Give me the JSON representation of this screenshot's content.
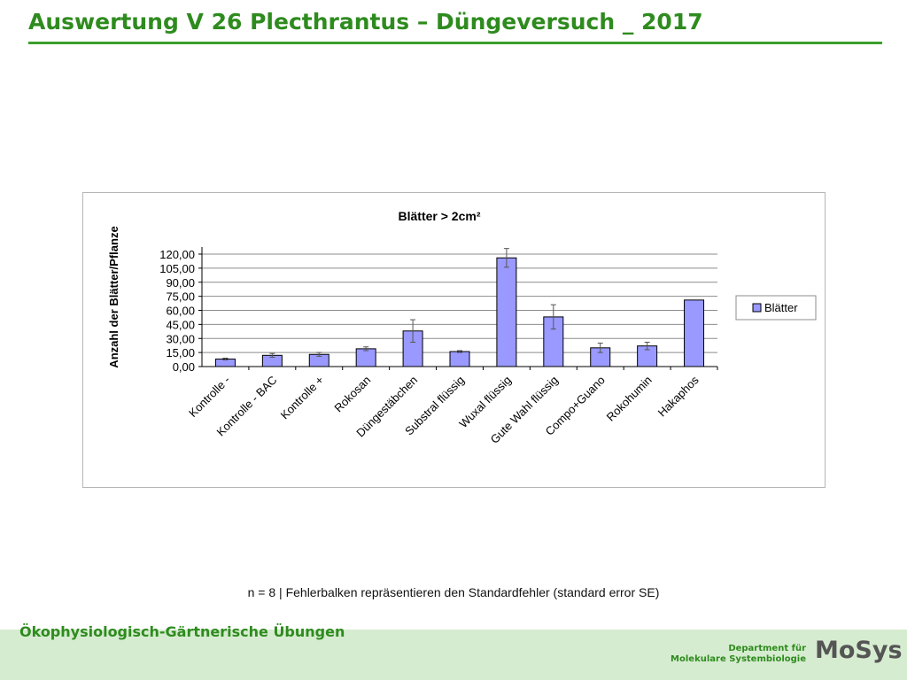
{
  "slide": {
    "title": "Auswertung V 26 Plecthrantus – Düngeversuch _ 2017",
    "footnote": "n = 8 | Fehlerbalken repräsentieren den Standardfehler (standard error SE)",
    "footer_left": "Ökophysiologisch-Gärtnerische Übungen",
    "dept_line1": "Department für",
    "dept_line2": "Molekulare Systembiologie",
    "logo_text": "MoSys"
  },
  "colors": {
    "title": "#2e8b1e",
    "bar_fill": "#9999ff",
    "bar_stroke": "#000000",
    "footer_band": "#d6ecd0"
  },
  "chart_data": {
    "type": "bar",
    "title": "Blätter > 2cm²",
    "ylabel": "Anzahl der Blätter/Pflanze",
    "xlabel": "",
    "ylim": [
      0,
      120
    ],
    "yticks": [
      "0,00",
      "15,00",
      "30,00",
      "45,00",
      "60,00",
      "75,00",
      "90,00",
      "105,00",
      "120,00"
    ],
    "ytick_values": [
      0,
      15,
      30,
      45,
      60,
      75,
      90,
      105,
      120
    ],
    "grid": true,
    "legend_position": "right",
    "categories": [
      "Kontrolle -",
      "Kontrolle - BAC",
      "Kontrolle +",
      "Rokosan",
      "Düngestäbchen",
      "Substral flüssig",
      "Wuxal flüssig",
      "Gute Wahl flüssig",
      "Compo+Guano",
      "Rokohumin",
      "Hakaphos"
    ],
    "series": [
      {
        "name": "Blätter",
        "values": [
          8,
          12,
          13,
          19,
          38,
          16,
          116,
          53,
          20,
          22,
          71
        ],
        "errors": [
          1,
          2,
          2,
          2,
          12,
          1,
          10,
          13,
          5,
          4,
          0
        ]
      }
    ]
  }
}
